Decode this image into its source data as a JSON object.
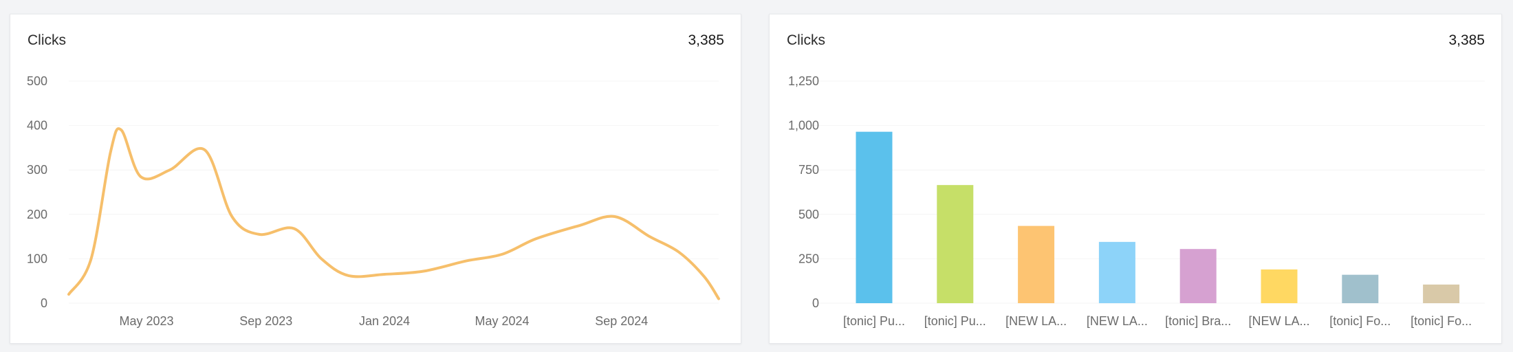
{
  "charts": {
    "left": {
      "title": "Clicks",
      "total": "3,385"
    },
    "right": {
      "title": "Clicks",
      "total": "3,385"
    }
  },
  "chart_data": [
    {
      "type": "line",
      "title": "Clicks",
      "total": "3,385",
      "color": "#f6bf6b",
      "ylim": [
        0,
        500
      ],
      "yticks": [
        0,
        100,
        200,
        300,
        400,
        500
      ],
      "xlim": [
        "2023-02-10",
        "2024-12-10"
      ],
      "xticks": [
        {
          "label": "May 2023",
          "date": "2023-05-01"
        },
        {
          "label": "Sep 2023",
          "date": "2023-09-01"
        },
        {
          "label": "Jan 2024",
          "date": "2024-01-01"
        },
        {
          "label": "May 2024",
          "date": "2024-05-01"
        },
        {
          "label": "Sep 2024",
          "date": "2024-09-01"
        }
      ],
      "points": [
        {
          "x": "2023-02-10",
          "y": 20
        },
        {
          "x": "2023-03-05",
          "y": 100
        },
        {
          "x": "2023-03-25",
          "y": 340
        },
        {
          "x": "2023-04-05",
          "y": 390
        },
        {
          "x": "2023-04-25",
          "y": 285
        },
        {
          "x": "2023-05-25",
          "y": 300
        },
        {
          "x": "2023-06-30",
          "y": 345
        },
        {
          "x": "2023-07-28",
          "y": 195
        },
        {
          "x": "2023-08-25",
          "y": 155
        },
        {
          "x": "2023-09-30",
          "y": 168
        },
        {
          "x": "2023-10-28",
          "y": 100
        },
        {
          "x": "2023-11-25",
          "y": 62
        },
        {
          "x": "2024-01-01",
          "y": 65
        },
        {
          "x": "2024-02-10",
          "y": 72
        },
        {
          "x": "2024-03-25",
          "y": 95
        },
        {
          "x": "2024-05-01",
          "y": 110
        },
        {
          "x": "2024-06-05",
          "y": 145
        },
        {
          "x": "2024-07-20",
          "y": 175
        },
        {
          "x": "2024-08-25",
          "y": 195
        },
        {
          "x": "2024-09-30",
          "y": 150
        },
        {
          "x": "2024-10-30",
          "y": 115
        },
        {
          "x": "2024-11-25",
          "y": 60
        },
        {
          "x": "2024-12-10",
          "y": 10
        }
      ]
    },
    {
      "type": "bar",
      "title": "Clicks",
      "total": "3,385",
      "ylim": [
        0,
        1250
      ],
      "yticks": [
        0,
        250,
        500,
        750,
        "1,000",
        "1,250"
      ],
      "categories": [
        "[tonic] Pu...",
        "[tonic] Pu...",
        "[NEW LA...",
        "[NEW LA...",
        "[tonic] Bra...",
        "[NEW LA...",
        "[tonic] Fo...",
        "[tonic] Fo..."
      ],
      "values": [
        965,
        665,
        435,
        345,
        305,
        190,
        160,
        105
      ],
      "colors": [
        "#5bc1ec",
        "#c6df68",
        "#fdc472",
        "#8dd3f9",
        "#d6a1d1",
        "#ffd862",
        "#a0c0cc",
        "#d9c9a8"
      ]
    }
  ]
}
